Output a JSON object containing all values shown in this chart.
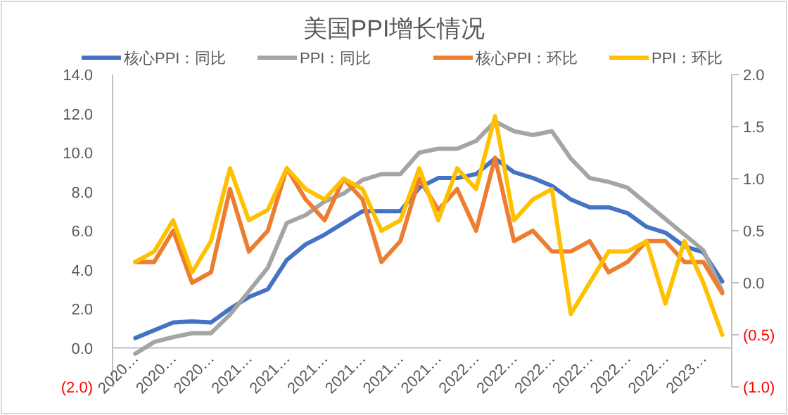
{
  "chart_data": {
    "type": "line",
    "title": "美国PPI增长情况",
    "categories": [
      "2020…",
      null,
      "2020…",
      null,
      "2020…",
      null,
      "2021…",
      null,
      "2021…",
      null,
      "2021…",
      null,
      "2021…",
      null,
      "2021…",
      null,
      "2021…",
      null,
      "2022…",
      null,
      "2022…",
      null,
      "2022…",
      null,
      "2022…",
      null,
      "2022…",
      null,
      "2022…",
      null,
      "2023…",
      null
    ],
    "series": [
      {
        "name": "核心PPI：同比",
        "color": "#4472c4",
        "values": [
          0.5,
          0.9,
          1.3,
          1.35,
          1.3,
          2.0,
          2.6,
          3.0,
          4.5,
          5.3,
          5.8,
          6.4,
          7.0,
          7.0,
          7.0,
          8.2,
          8.7,
          8.7,
          8.9,
          9.7,
          9.0,
          8.7,
          8.3,
          7.6,
          7.2,
          7.2,
          6.9,
          6.2,
          5.9,
          5.2,
          4.9,
          3.4
        ]
      },
      {
        "name": "PPI：同比",
        "color": "#a5a5a5",
        "values": [
          -0.3,
          0.3,
          0.55,
          0.75,
          0.75,
          1.7,
          2.9,
          4.1,
          6.4,
          6.8,
          7.5,
          7.9,
          8.6,
          8.9,
          8.9,
          10.0,
          10.2,
          10.2,
          10.6,
          11.6,
          11.1,
          10.9,
          11.1,
          9.7,
          8.7,
          8.5,
          8.2,
          7.4,
          6.6,
          5.8,
          5.0,
          2.9
        ]
      },
      {
        "name": "核心PPI：环比",
        "color": "#ed7d31",
        "axis": "y2",
        "values": [
          0.2,
          0.2,
          0.5,
          0.0,
          0.1,
          0.9,
          0.3,
          0.5,
          1.1,
          0.8,
          0.6,
          1.0,
          0.8,
          0.2,
          0.4,
          1.0,
          0.7,
          0.9,
          0.5,
          1.2,
          0.4,
          0.5,
          0.3,
          0.3,
          0.4,
          0.1,
          0.2,
          0.4,
          0.4,
          0.2,
          0.2,
          -0.1
        ]
      },
      {
        "name": "PPI：环比",
        "color": "#ffc000",
        "axis": "y2",
        "values": [
          0.2,
          0.3,
          0.6,
          0.1,
          0.4,
          1.1,
          0.6,
          0.7,
          1.1,
          0.9,
          0.8,
          1.0,
          0.9,
          0.5,
          0.6,
          1.1,
          0.6,
          1.1,
          0.9,
          1.6,
          0.6,
          0.8,
          0.9,
          -0.3,
          0.0,
          0.3,
          0.3,
          0.4,
          -0.2,
          0.4,
          0.0,
          -0.5
        ]
      }
    ],
    "ylim": [
      -2,
      14
    ],
    "yticks": [
      {
        "value": -2,
        "label": "(2.0)"
      },
      {
        "value": 0,
        "label": "0.0"
      },
      {
        "value": 2,
        "label": "2.0"
      },
      {
        "value": 4,
        "label": "4.0"
      },
      {
        "value": 6,
        "label": "6.0"
      },
      {
        "value": 8,
        "label": "8.0"
      },
      {
        "value": 10,
        "label": "10.0"
      },
      {
        "value": 12,
        "label": "12.0"
      },
      {
        "value": 14,
        "label": "14.0"
      }
    ],
    "y2lim": [
      -1,
      2
    ],
    "y2ticks": [
      {
        "value": -1,
        "label": "(1.0)"
      },
      {
        "value": -0.5,
        "label": "(0.5)"
      },
      {
        "value": 0,
        "label": "0.0"
      },
      {
        "value": 0.5,
        "label": "0.5"
      },
      {
        "value": 1,
        "label": "1.0"
      },
      {
        "value": 1.5,
        "label": "1.5"
      },
      {
        "value": 2,
        "label": "2.0"
      }
    ],
    "legend": "top",
    "grid": false,
    "marker": "none",
    "line_style": "solid"
  }
}
